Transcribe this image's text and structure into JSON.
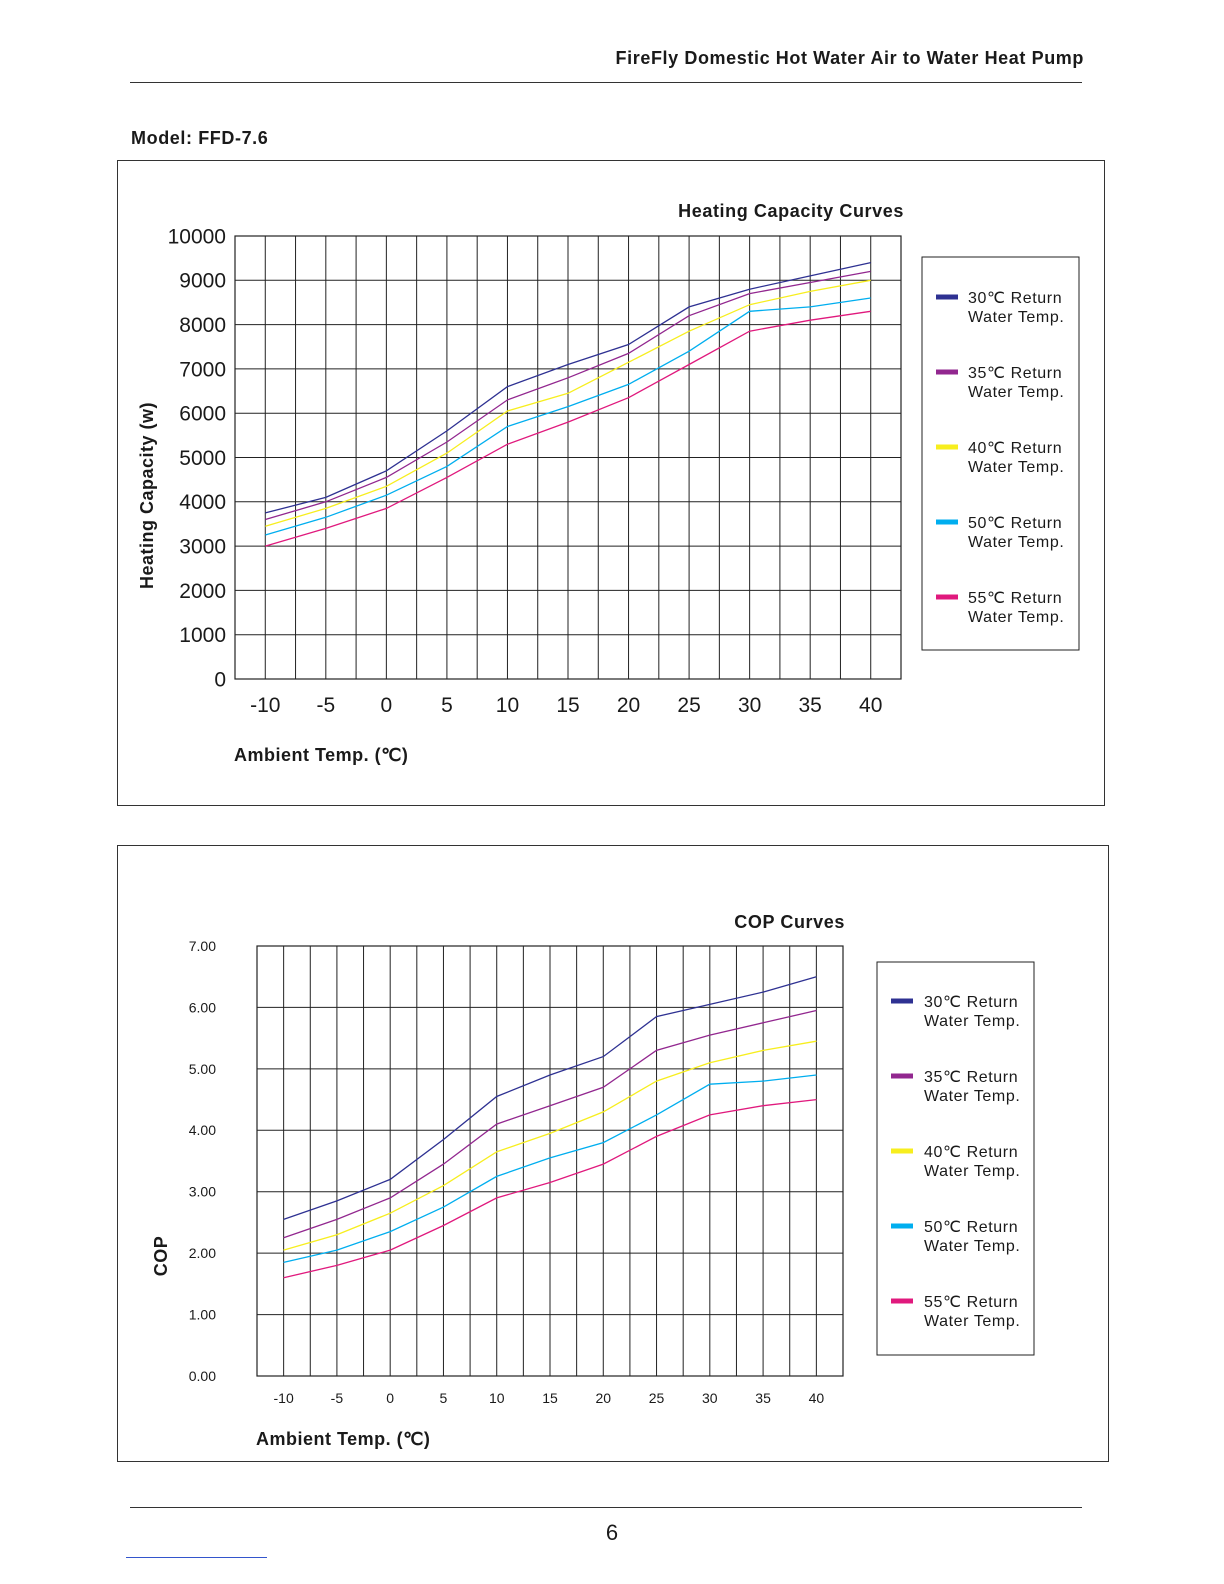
{
  "header": {
    "title": "FireFly Domestic Hot Water Air to Water Heat Pump"
  },
  "model": {
    "label": "Model: FFD-7.6"
  },
  "page": {
    "number": "6"
  },
  "colors": {
    "30": "#2e3192",
    "35": "#92278f",
    "40": "#f7ee1e",
    "50": "#00aeef",
    "55": "#e0197d"
  },
  "chart_data": [
    {
      "type": "line",
      "title": "Heating Capacity Curves",
      "xlabel": "Ambient Temp. (℃)",
      "ylabel": "Heating Capacity (w)",
      "xlim": [
        -12.5,
        42.5
      ],
      "ylim": [
        0,
        10000
      ],
      "grid": true,
      "legend_position": "right",
      "x": [
        -10,
        -5,
        0,
        5,
        10,
        15,
        20,
        25,
        30,
        35,
        40
      ],
      "x_ticks": [
        "-10",
        "-5",
        "0",
        "5",
        "10",
        "15",
        "20",
        "25",
        "30",
        "35",
        "40"
      ],
      "y_ticks": [
        "0",
        "1000",
        "2000",
        "3000",
        "4000",
        "5000",
        "6000",
        "7000",
        "8000",
        "9000",
        "10000"
      ],
      "y_tick_values": [
        0,
        1000,
        2000,
        3000,
        4000,
        5000,
        6000,
        7000,
        8000,
        9000,
        10000
      ],
      "series": [
        {
          "key": "30",
          "name": "30℃ Return Water Temp.",
          "legend_line1": "30℃ Return",
          "legend_line2": "Water Temp.",
          "values": [
            3750,
            4100,
            4700,
            5600,
            6600,
            7100,
            7550,
            8400,
            8800,
            9100,
            9400
          ]
        },
        {
          "key": "35",
          "name": "35℃ Return Water Temp.",
          "legend_line1": "35℃ Return",
          "legend_line2": "Water Temp.",
          "values": [
            3600,
            4000,
            4550,
            5350,
            6300,
            6800,
            7350,
            8200,
            8700,
            8950,
            9200
          ]
        },
        {
          "key": "40",
          "name": "40℃ Return Water Temp.",
          "legend_line1": "40℃ Return",
          "legend_line2": "Water Temp.",
          "values": [
            3450,
            3850,
            4350,
            5100,
            6050,
            6450,
            7150,
            7850,
            8450,
            8750,
            9000
          ]
        },
        {
          "key": "50",
          "name": "50℃ Return Water Temp.",
          "legend_line1": "50℃ Return",
          "legend_line2": "Water Temp.",
          "values": [
            3250,
            3650,
            4150,
            4800,
            5700,
            6150,
            6650,
            7400,
            8300,
            8400,
            8600
          ]
        },
        {
          "key": "55",
          "name": "55℃ Return Water Temp.",
          "legend_line1": "55℃ Return",
          "legend_line2": "Water Temp.",
          "values": [
            3000,
            3400,
            3850,
            4550,
            5300,
            5800,
            6350,
            7100,
            7850,
            8100,
            8300
          ]
        }
      ]
    },
    {
      "type": "line",
      "title": "COP Curves",
      "xlabel": "Ambient Temp. (℃)",
      "ylabel": "COP",
      "xlim": [
        -12.5,
        42.5
      ],
      "ylim": [
        0,
        7
      ],
      "grid": true,
      "legend_position": "right",
      "x": [
        -10,
        -5,
        0,
        5,
        10,
        15,
        20,
        25,
        30,
        35,
        40
      ],
      "x_ticks": [
        "-10",
        "-5",
        "0",
        "5",
        "10",
        "15",
        "20",
        "25",
        "30",
        "35",
        "40"
      ],
      "y_ticks": [
        "0.00",
        "1.00",
        "2.00",
        "3.00",
        "4.00",
        "5.00",
        "6.00",
        "7.00"
      ],
      "y_tick_values": [
        0,
        1,
        2,
        3,
        4,
        5,
        6,
        7
      ],
      "series": [
        {
          "key": "30",
          "name": "30℃ Return Water Temp.",
          "legend_line1": "30℃ Return",
          "legend_line2": "Water Temp.",
          "values": [
            2.55,
            2.85,
            3.2,
            3.85,
            4.55,
            4.9,
            5.2,
            5.85,
            6.05,
            6.25,
            6.5
          ]
        },
        {
          "key": "35",
          "name": "35℃ Return Water Temp.",
          "legend_line1": "35℃ Return",
          "legend_line2": "Water Temp.",
          "values": [
            2.25,
            2.55,
            2.9,
            3.45,
            4.1,
            4.4,
            4.7,
            5.3,
            5.55,
            5.75,
            5.95
          ]
        },
        {
          "key": "40",
          "name": "40℃ Return Water Temp.",
          "legend_line1": "40℃ Return",
          "legend_line2": "Water Temp.",
          "values": [
            2.05,
            2.3,
            2.65,
            3.1,
            3.65,
            3.95,
            4.3,
            4.8,
            5.1,
            5.3,
            5.45
          ]
        },
        {
          "key": "50",
          "name": "50℃ Return Water Temp.",
          "legend_line1": "50℃ Return",
          "legend_line2": "Water Temp.",
          "values": [
            1.85,
            2.05,
            2.35,
            2.75,
            3.25,
            3.55,
            3.8,
            4.25,
            4.75,
            4.8,
            4.9
          ]
        },
        {
          "key": "55",
          "name": "55℃ Return Water Temp.",
          "legend_line1": "55℃ Return",
          "legend_line2": "Water Temp.",
          "values": [
            1.6,
            1.8,
            2.05,
            2.45,
            2.9,
            3.15,
            3.45,
            3.9,
            4.25,
            4.4,
            4.5
          ]
        }
      ]
    }
  ]
}
